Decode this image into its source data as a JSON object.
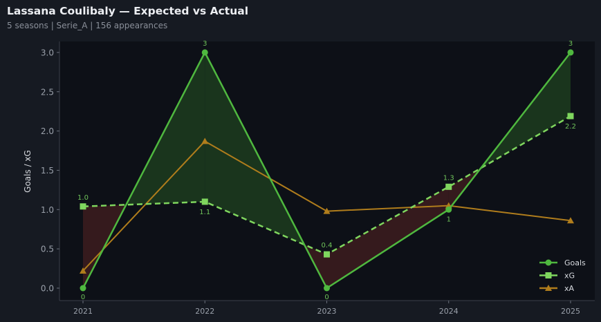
{
  "header": {
    "title": "Lassana Coulibaly — Expected vs Actual",
    "subtitle": "5 seasons | Serie_A | 156 appearances"
  },
  "chart_data": {
    "type": "line",
    "categories": [
      "2021",
      "2022",
      "2023",
      "2024",
      "2025"
    ],
    "ylabel": "Goals / xG",
    "ylim": [
      -0.15,
      3.15
    ],
    "yticks": [
      "0.0",
      "0.5",
      "1.0",
      "1.5",
      "2.0",
      "2.5",
      "3.0"
    ],
    "grid": false,
    "legend_position": "bottom-right",
    "series": [
      {
        "name": "Goals",
        "values": [
          0,
          3,
          0,
          1,
          3
        ],
        "labels": [
          "0",
          "3",
          "0",
          "1",
          "3"
        ],
        "color": "#4fb83f",
        "marker": "circle",
        "style": "solid"
      },
      {
        "name": "xG",
        "values": [
          1.04,
          1.1,
          0.43,
          1.29,
          2.19
        ],
        "labels": [
          "1.0",
          "1.1",
          "0.4",
          "1.3",
          "2.2"
        ],
        "color": "#7fd65e",
        "marker": "square",
        "style": "dashed"
      },
      {
        "name": "xA",
        "values": [
          0.22,
          1.87,
          0.98,
          1.05,
          0.86
        ],
        "color": "#b07d1c",
        "marker": "triangle",
        "style": "solid"
      }
    ],
    "fill_colors": {
      "over": "#1c3a1e",
      "under": "#3a1c1e"
    }
  }
}
